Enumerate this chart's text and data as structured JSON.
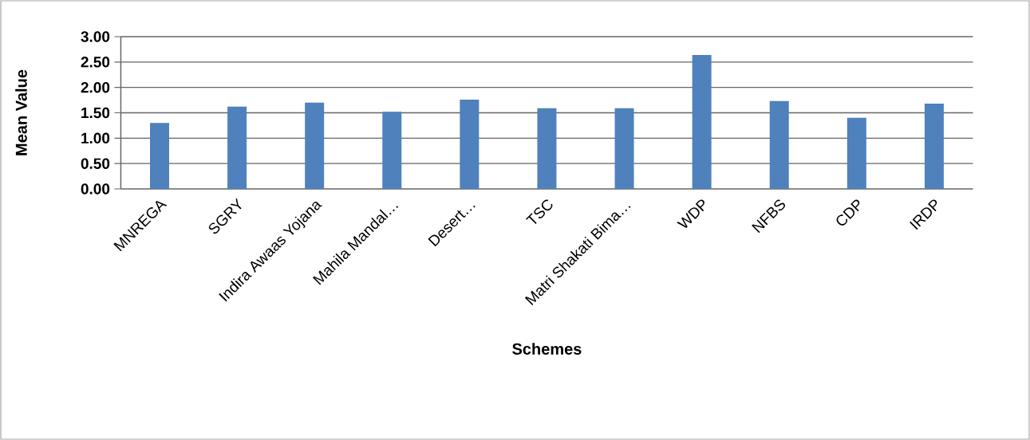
{
  "chart_data": {
    "type": "bar",
    "xlabel": "Schemes",
    "ylabel": "Mean Value",
    "categories": [
      "MNREGA",
      "SGRY",
      "Indira Awaas Yojana",
      "Mahila Mandal…",
      "Desert…",
      "TSC",
      "Matri Shakati Bima…",
      "WDP",
      "NFBS",
      "CDP",
      "IRDP"
    ],
    "values": [
      1.3,
      1.62,
      1.7,
      1.52,
      1.76,
      1.59,
      1.59,
      2.64,
      1.73,
      1.4,
      1.68
    ],
    "color": "#4f81bd",
    "ylim": [
      0,
      3
    ],
    "yticks": [
      {
        "value": 0,
        "label": "0.00"
      },
      {
        "value": 0.5,
        "label": "0.50"
      },
      {
        "value": 1,
        "label": "1.00"
      },
      {
        "value": 1.5,
        "label": "1.50"
      },
      {
        "value": 2,
        "label": "2.00"
      },
      {
        "value": 2.5,
        "label": "2.50"
      },
      {
        "value": 3,
        "label": "3.00"
      }
    ],
    "grid": "y"
  }
}
